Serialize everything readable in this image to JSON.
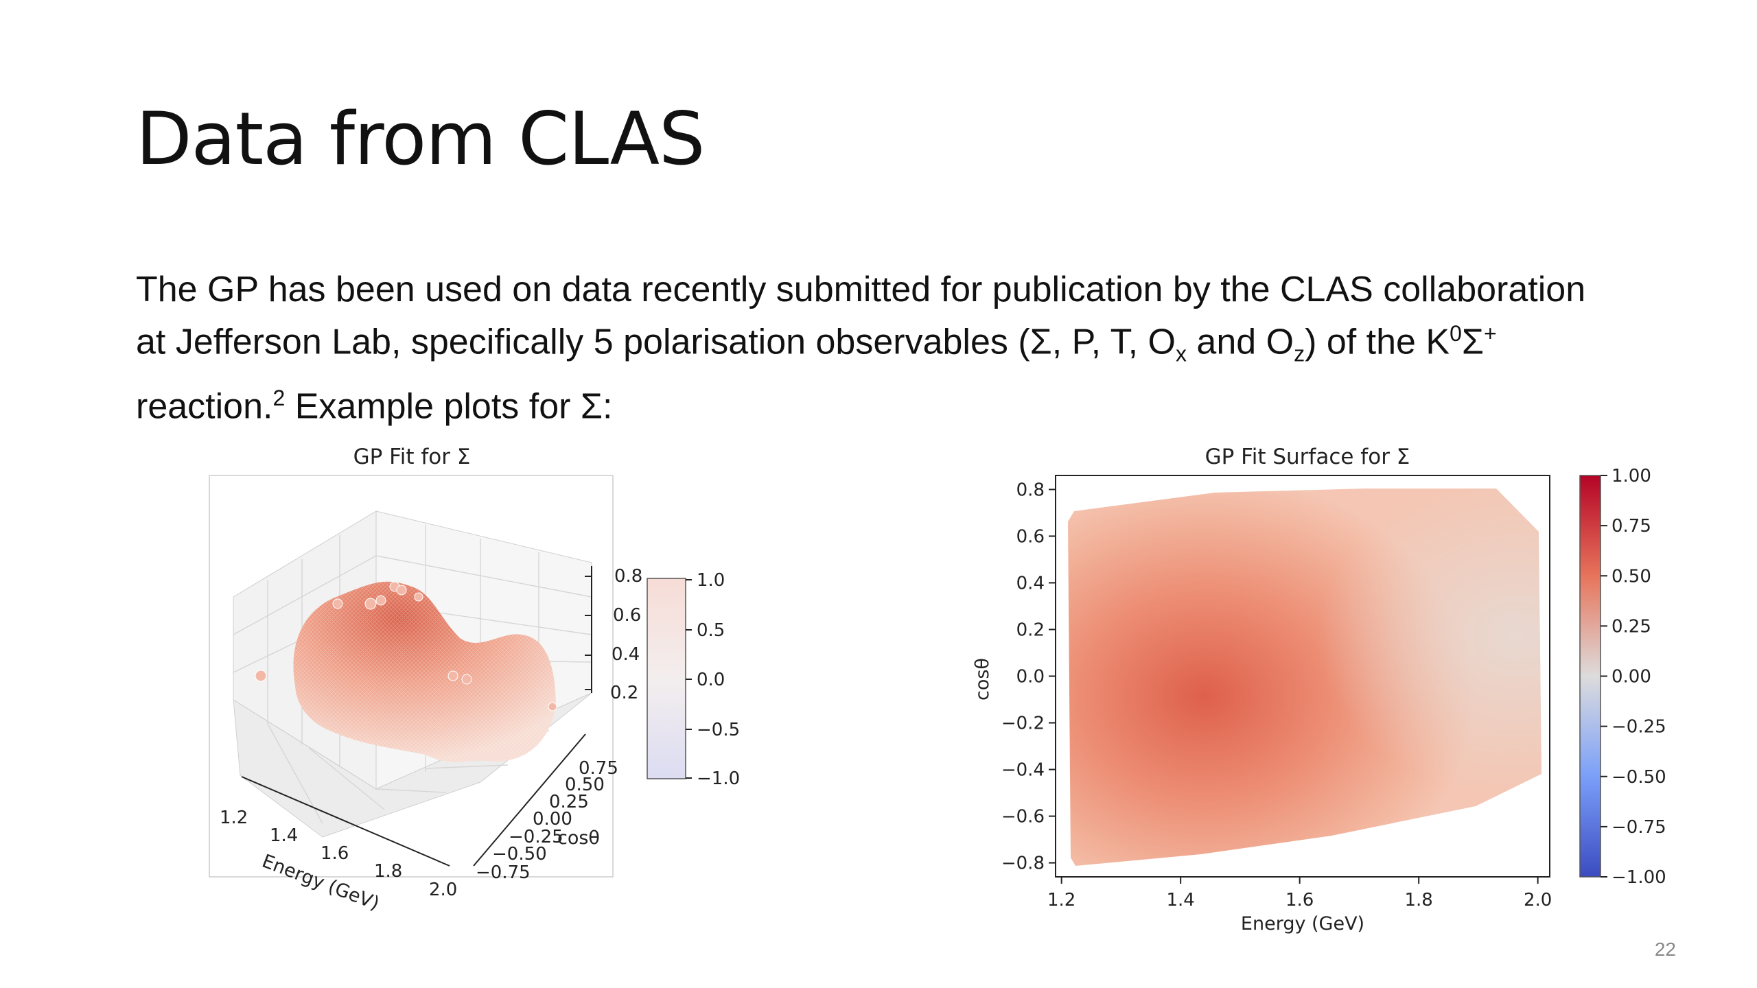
{
  "slide": {
    "title": "Data from CLAS",
    "page_number": "22"
  },
  "body": {
    "line1": "The GP has been used on data recently submitted for publication by the CLAS collaboration",
    "line2_a": "at Jefferson Lab, specifically 5 polarisation observables (Σ, P, T, O",
    "line2_sub_x": "x",
    "line2_b": " and O",
    "line2_sub_z": "z",
    "line2_c": ") of the K",
    "line2_sup_0": "0",
    "line2_d": "Σ",
    "line2_sup_plus": "+",
    "line3_a": "reaction.",
    "line3_sup": "2",
    "line3_b": " Example plots for Σ:"
  },
  "colors": {
    "cmap_low": "#3b4cc0",
    "cmap_mid": "#dddcdc",
    "cmap_high": "#b40426",
    "surface_high": "#d9624b"
  },
  "chart_data": [
    {
      "type": "surface-3d",
      "title": "GP Fit for Σ",
      "xlabel": "Energy (GeV)",
      "ylabel": "cosθ",
      "x_ticks": [
        "1.2",
        "1.4",
        "1.6",
        "1.8",
        "2.0"
      ],
      "y_ticks": [
        "−0.75",
        "−0.50",
        "−0.25",
        "0.00",
        "0.25",
        "0.50",
        "0.75"
      ],
      "z_ticks": [
        "0.2",
        "0.4",
        "0.6",
        "0.8"
      ],
      "colorbar_ticks": [
        "1.0",
        "0.5",
        "0.0",
        "−0.5",
        "−1.0"
      ],
      "colorbar_range": [
        -1.0,
        1.0
      ]
    },
    {
      "type": "heatmap",
      "title": "GP Fit Surface for Σ",
      "xlabel": "Energy (GeV)",
      "ylabel": "cosθ",
      "x_ticks": [
        "1.2",
        "1.4",
        "1.6",
        "1.8",
        "2.0"
      ],
      "x_values": [
        1.2,
        1.4,
        1.6,
        1.8,
        2.0
      ],
      "y_ticks": [
        "0.8",
        "0.6",
        "0.4",
        "0.2",
        "0.0",
        "−0.2",
        "−0.4",
        "−0.6",
        "−0.8"
      ],
      "y_values": [
        0.8,
        0.6,
        0.4,
        0.2,
        0.0,
        -0.2,
        -0.4,
        -0.6,
        -0.8
      ],
      "xlim": [
        1.19,
        2.02
      ],
      "ylim": [
        -0.86,
        0.86
      ],
      "colorbar_ticks": [
        "1.00",
        "0.75",
        "0.50",
        "0.25",
        "0.00",
        "−0.25",
        "−0.50",
        "−0.75",
        "−1.00"
      ],
      "colorbar_values": [
        1.0,
        0.75,
        0.5,
        0.25,
        0.0,
        -0.25,
        -0.5,
        -0.75,
        -1.0
      ],
      "colorbar_range": [
        -1.0,
        1.0
      ],
      "peak": {
        "energy": 1.45,
        "costheta": -0.1,
        "value": 0.6
      }
    }
  ]
}
